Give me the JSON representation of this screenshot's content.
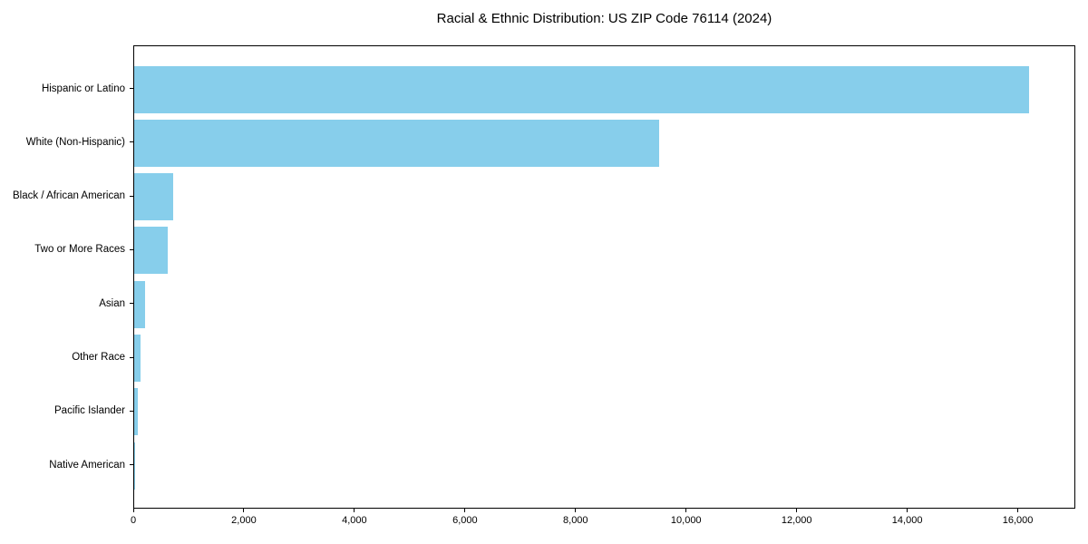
{
  "chart_data": {
    "type": "bar",
    "orientation": "horizontal",
    "title": "Racial & Ethnic Distribution: US ZIP Code 76114 (2024)",
    "xlabel": "",
    "ylabel": "",
    "categories": [
      "Hispanic or Latino",
      "White (Non-Hispanic)",
      "Black / African American",
      "Two or More Races",
      "Asian",
      "Other Race",
      "Pacific Islander",
      "Native American"
    ],
    "values": [
      16220,
      9510,
      710,
      600,
      190,
      120,
      60,
      20
    ],
    "xlim": [
      0,
      17040
    ],
    "x_ticks": [
      0,
      2000,
      4000,
      6000,
      8000,
      10000,
      12000,
      14000,
      16000
    ],
    "x_tick_labels": [
      "0",
      "2,000",
      "4,000",
      "6,000",
      "8,000",
      "10,000",
      "12,000",
      "14,000",
      "16,000"
    ],
    "grid": false,
    "legend": "none",
    "bar_color": "#87CEEB",
    "frame_color": "#000000",
    "text_color": "#000000",
    "background_color": "#FFFFFF"
  }
}
